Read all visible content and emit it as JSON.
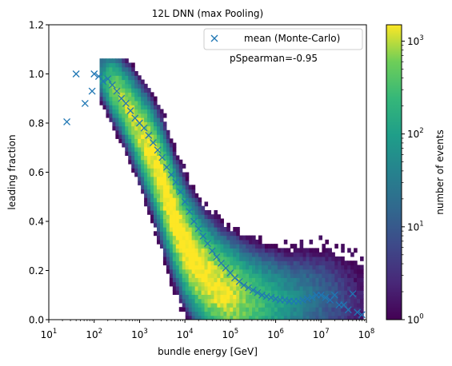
{
  "chart_data": {
    "type": "heatmap",
    "title": "12L DNN (max Pooling)",
    "xlabel": "bundle energy [GeV]",
    "ylabel": "leading fraction",
    "xscale": "log",
    "xlim": [
      10,
      100000000
    ],
    "ylim": [
      0,
      1.2
    ],
    "x_ticks": [
      {
        "value": 10,
        "base": "10",
        "exp": "1"
      },
      {
        "value": 100,
        "base": "10",
        "exp": "2"
      },
      {
        "value": 1000,
        "base": "10",
        "exp": "3"
      },
      {
        "value": 10000,
        "base": "10",
        "exp": "4"
      },
      {
        "value": 100000,
        "base": "10",
        "exp": "5"
      },
      {
        "value": 1000000,
        "base": "10",
        "exp": "6"
      },
      {
        "value": 10000000,
        "base": "10",
        "exp": "7"
      },
      {
        "value": 100000000,
        "base": "10",
        "exp": "8"
      }
    ],
    "y_ticks": [
      "0.0",
      "0.2",
      "0.4",
      "0.6",
      "0.8",
      "1.0",
      "1.2"
    ],
    "annotation": "pSpearman=-0.95",
    "legend": {
      "label": "mean (Monte-Carlo)",
      "placement": "top-right",
      "marker": "x",
      "color": "#1f77b4"
    },
    "grid": false,
    "colorbar": {
      "label": "number of events",
      "scale": "log",
      "range": [
        1,
        1500
      ],
      "colormap": "viridis",
      "ticks": [
        {
          "value": 1,
          "base": "10",
          "exp": "0"
        },
        {
          "value": 10,
          "base": "10",
          "exp": "1"
        },
        {
          "value": 100,
          "base": "10",
          "exp": "2"
        },
        {
          "value": 1000,
          "base": "10",
          "exp": "3"
        }
      ]
    },
    "density_ridge": {
      "log10_energy": [
        2.1,
        2.3,
        2.5,
        2.75,
        3.0,
        3.25,
        3.5,
        3.75,
        4.0,
        4.25,
        4.5,
        4.75,
        5.0,
        5.25,
        5.5,
        5.75,
        6.0,
        6.25,
        6.5,
        6.75,
        7.0,
        7.25,
        7.5,
        7.75,
        8.0
      ],
      "leading_fraction": [
        1.0,
        0.97,
        0.93,
        0.86,
        0.77,
        0.68,
        0.56,
        0.42,
        0.31,
        0.23,
        0.17,
        0.13,
        0.1,
        0.085,
        0.075,
        0.07,
        0.068,
        0.07,
        0.075,
        0.08,
        0.085,
        0.09,
        0.08,
        0.06,
        0.04
      ]
    },
    "series": [
      {
        "name": "mean (Monte-Carlo)",
        "marker": "x",
        "color": "#1f77b4",
        "x": [
          25,
          40,
          63,
          90,
          100,
          126,
          158,
          200,
          251,
          316,
          398,
          501,
          631,
          794,
          1000,
          1259,
          1585,
          1995,
          2512,
          3162,
          3981,
          5012,
          6310,
          7943,
          10000,
          12589,
          15849,
          19953,
          25119,
          31623,
          39811,
          50119,
          63096,
          79433,
          100000,
          125893,
          158489,
          199526,
          251189,
          316228,
          398107,
          501187,
          630957,
          794328,
          1000000,
          1258925,
          1584893,
          1995262,
          2511886,
          3162278,
          3981072,
          5011872,
          6309573,
          7943282,
          10000000,
          12589254,
          15848932,
          19952623,
          25118864,
          31622777,
          39810717,
          50118723,
          63095734,
          79432823
        ],
        "y": [
          0.805,
          1.0,
          0.88,
          0.93,
          1.0,
          0.99,
          0.97,
          0.98,
          0.955,
          0.93,
          0.9,
          0.88,
          0.85,
          0.82,
          0.8,
          0.78,
          0.75,
          0.72,
          0.69,
          0.66,
          0.62,
          0.59,
          0.56,
          0.52,
          0.48,
          0.44,
          0.4,
          0.37,
          0.34,
          0.31,
          0.28,
          0.255,
          0.23,
          0.21,
          0.19,
          0.17,
          0.155,
          0.14,
          0.13,
          0.12,
          0.11,
          0.1,
          0.095,
          0.09,
          0.085,
          0.08,
          0.08,
          0.075,
          0.075,
          0.075,
          0.08,
          0.085,
          0.09,
          0.1,
          0.1,
          0.09,
          0.08,
          0.1,
          0.06,
          0.06,
          0.04,
          0.105,
          0.03,
          0.02
        ]
      }
    ]
  }
}
